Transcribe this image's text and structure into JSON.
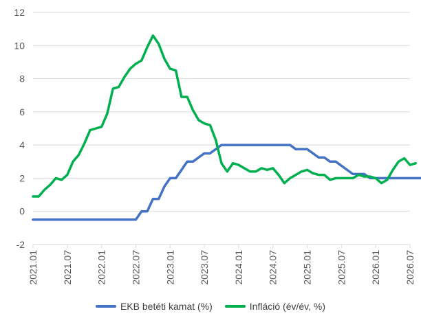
{
  "chart_data": {
    "type": "line",
    "title": "",
    "xlabel": "",
    "ylabel": "",
    "ylim": [
      -2,
      12
    ],
    "yticks": [
      -2,
      0,
      2,
      4,
      6,
      8,
      10,
      12
    ],
    "x_start": "2021.01",
    "x_tick_labels": [
      "2021.01",
      "2021.07",
      "2022.01",
      "2022.07",
      "2023.01",
      "2023.07",
      "2024.01",
      "2024.07",
      "2025.01",
      "2025.07",
      "2026.01",
      "2026.07"
    ],
    "legend_position": "bottom",
    "gridlines": "horizontal",
    "axis_color": "#d9d9d9",
    "series": [
      {
        "name": "EKB betéti kamat (%)",
        "color": "#4472c4",
        "values": [
          -0.5,
          -0.5,
          -0.5,
          -0.5,
          -0.5,
          -0.5,
          -0.5,
          -0.5,
          -0.5,
          -0.5,
          -0.5,
          -0.5,
          -0.5,
          -0.5,
          -0.5,
          -0.5,
          -0.5,
          -0.5,
          -0.5,
          0,
          0,
          0.75,
          0.75,
          1.5,
          2,
          2,
          2.5,
          3,
          3,
          3.25,
          3.5,
          3.5,
          3.75,
          4,
          4,
          4,
          4,
          4,
          4,
          4,
          4,
          4,
          4,
          4,
          4,
          4,
          3.75,
          3.75,
          3.75,
          3.5,
          3.25,
          3.25,
          3,
          3,
          2.75,
          2.5,
          2.25,
          2.25,
          2.25,
          2,
          2,
          2,
          2,
          2,
          2,
          2,
          2,
          2,
          2,
          2,
          2,
          2,
          2,
          2,
          2,
          2.25,
          2.25,
          2.25
        ]
      },
      {
        "name": "Infláció (év/év, %)",
        "color": "#00b050",
        "values": [
          0.9,
          0.9,
          1.3,
          1.6,
          2,
          1.9,
          2.2,
          3,
          3.4,
          4.1,
          4.9,
          5,
          5.1,
          5.9,
          7.4,
          7.5,
          8.1,
          8.6,
          8.9,
          9.1,
          9.9,
          10.6,
          10.1,
          9.2,
          8.6,
          8.5,
          6.9,
          6.9,
          6.1,
          5.5,
          5.3,
          5.2,
          4.3,
          2.9,
          2.4,
          2.9,
          2.8,
          2.6,
          2.4,
          2.4,
          2.6,
          2.5,
          2.6,
          2.2,
          1.7,
          2,
          2.2,
          2.4,
          2.5,
          2.3,
          2.2,
          2.2,
          1.9,
          2,
          2,
          2,
          2,
          2.2,
          2.1,
          2.1,
          2,
          1.7,
          1.9,
          2.5,
          3,
          3.2,
          2.8,
          2.9
        ]
      }
    ]
  }
}
